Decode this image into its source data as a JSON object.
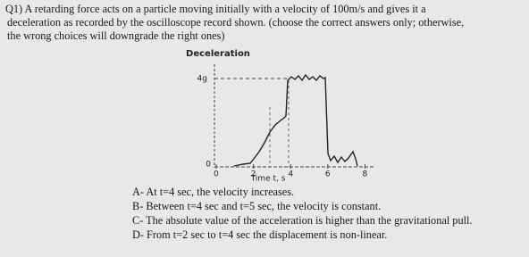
{
  "question": {
    "lines": [
      "Q1) A retarding force acts on a particle moving initially with a velocity of 100m/s and gives it a",
      "deceleration as recorded by the oscilloscope record shown. (choose the correct answers only; otherwise,",
      "the wrong choices will downgrade the right ones)"
    ]
  },
  "figure": {
    "title": "Deceleration",
    "y_top_label": "4g",
    "y_zero_label": "0",
    "x_ticks": [
      0,
      2,
      4,
      6,
      8
    ],
    "x_label": "Time t, s"
  },
  "options": [
    "A- At t=4 sec, the velocity increases.",
    "B- Between t=4 sec and t=5 sec, the velocity is constant.",
    "C- The absolute value of the acceleration is higher than the gravitational pull.",
    "D- From t=2 sec to t=4 sec the displacement is non-linear."
  ]
}
